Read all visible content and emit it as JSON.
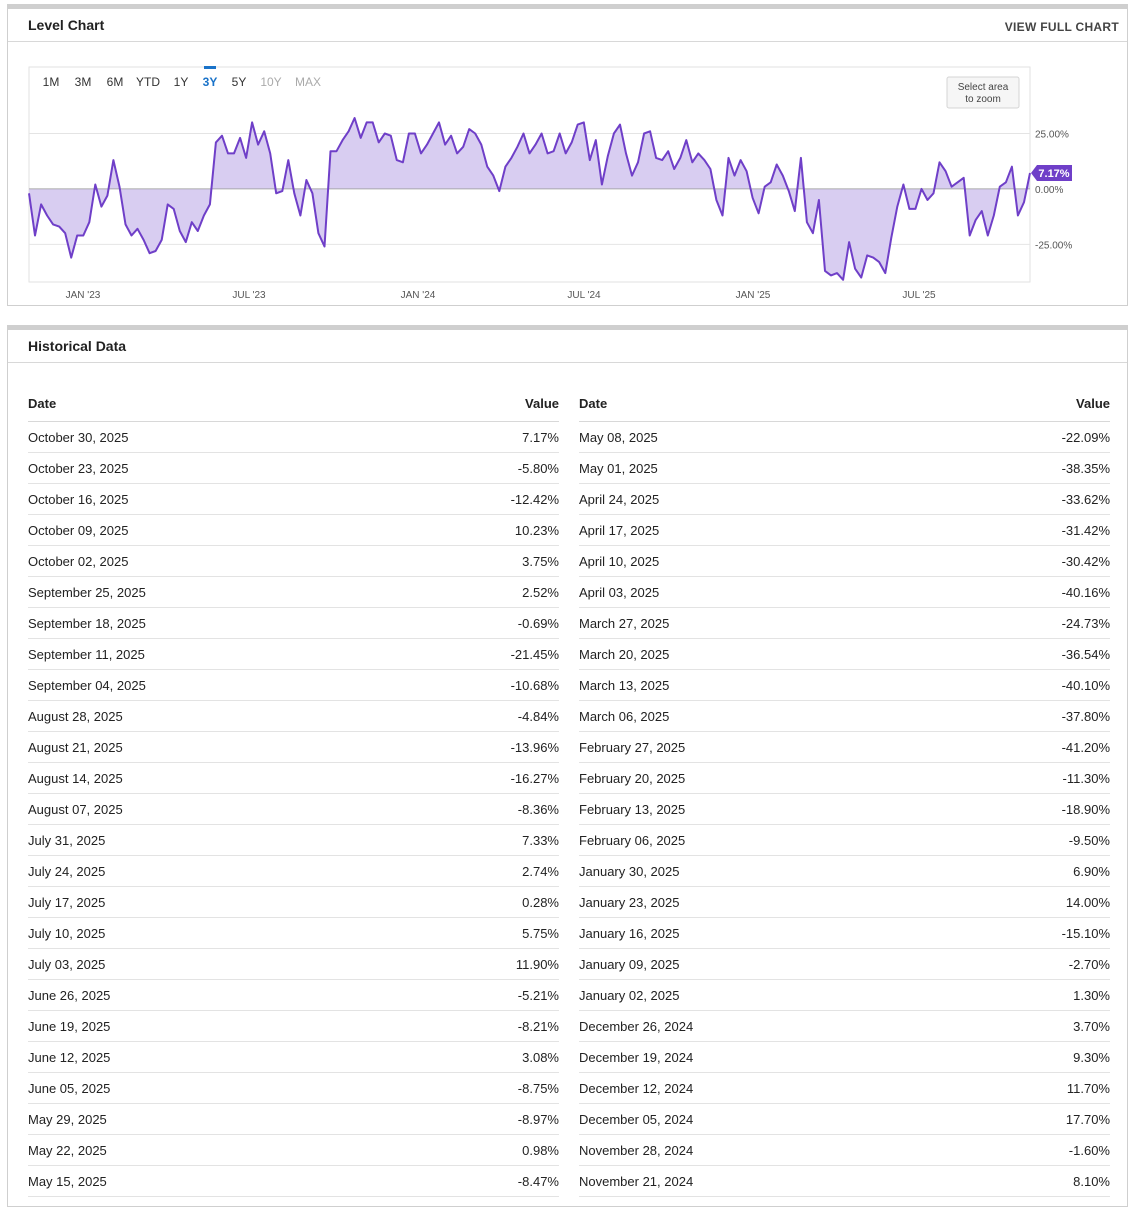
{
  "chart_panel": {
    "title": "Level Chart",
    "view_full_label": "VIEW FULL CHART"
  },
  "range_buttons": [
    "1M",
    "3M",
    "6M",
    "YTD",
    "1Y",
    "3Y",
    "5Y",
    "10Y",
    "MAX"
  ],
  "active_range": "3Y",
  "zoom_hint": [
    "Select area",
    "to zoom"
  ],
  "accent_color": "#6f3fc8",
  "fill_color": "#d8cdf1",
  "chart_data": {
    "type": "area",
    "x_tick_labels": [
      "JAN '23",
      "JUL '23",
      "JAN '24",
      "JUL '24",
      "JAN '25",
      "JUL '25"
    ],
    "y_tick_labels": [
      "25.00%",
      "0.00%",
      "-25.00%"
    ],
    "ylim": [
      -42,
      55
    ],
    "current_value_label": "7.17%",
    "legend": "none",
    "grid": "horizontal",
    "values": [
      -2,
      -21,
      -7,
      -12,
      -16,
      -17,
      -20,
      -31,
      -21,
      -21,
      -15,
      2,
      -8,
      -3,
      13,
      1,
      -16,
      -21,
      -18,
      -23,
      -29,
      -28,
      -23,
      -7,
      -9,
      -19,
      -24,
      -15,
      -19,
      -12,
      -7,
      21,
      24,
      16,
      16,
      23,
      14,
      30,
      20,
      26,
      16,
      -2,
      -1,
      13,
      -2,
      -12,
      4,
      -2,
      -20,
      -26,
      17,
      17,
      22,
      26,
      32,
      23,
      30,
      30,
      21,
      25,
      24,
      13,
      12,
      25,
      25,
      16,
      20,
      25,
      30,
      20,
      24,
      16,
      19,
      27,
      25,
      20,
      10,
      6,
      -1,
      10,
      14,
      19,
      25,
      16,
      20,
      25,
      16,
      17,
      25,
      16,
      21,
      29,
      30,
      13,
      22,
      2,
      15,
      25,
      29,
      16,
      6,
      12,
      25,
      26,
      14,
      13,
      17,
      9,
      14,
      22,
      12,
      16,
      13,
      9,
      -5,
      -12,
      14,
      6,
      13,
      8,
      -4,
      -11,
      1,
      3,
      11,
      6,
      -1,
      -10,
      14,
      -15,
      -20,
      -5,
      -37,
      -39,
      -38,
      -41,
      -24,
      -36,
      -40,
      -30,
      -31,
      -33,
      -38,
      -22,
      -8,
      2,
      -9,
      -9,
      0,
      -5,
      -2,
      12,
      8,
      1,
      3,
      5,
      -21,
      -14,
      -10,
      -21,
      -12,
      1,
      3,
      10,
      -12,
      -6,
      7.17
    ]
  },
  "historical": {
    "title": "Historical Data",
    "headers": {
      "date": "Date",
      "value": "Value"
    },
    "left": [
      {
        "date": "October 30, 2025",
        "value": "7.17%"
      },
      {
        "date": "October 23, 2025",
        "value": "-5.80%"
      },
      {
        "date": "October 16, 2025",
        "value": "-12.42%"
      },
      {
        "date": "October 09, 2025",
        "value": "10.23%"
      },
      {
        "date": "October 02, 2025",
        "value": "3.75%"
      },
      {
        "date": "September 25, 2025",
        "value": "2.52%"
      },
      {
        "date": "September 18, 2025",
        "value": "-0.69%"
      },
      {
        "date": "September 11, 2025",
        "value": "-21.45%"
      },
      {
        "date": "September 04, 2025",
        "value": "-10.68%"
      },
      {
        "date": "August 28, 2025",
        "value": "-4.84%"
      },
      {
        "date": "August 21, 2025",
        "value": "-13.96%"
      },
      {
        "date": "August 14, 2025",
        "value": "-16.27%"
      },
      {
        "date": "August 07, 2025",
        "value": "-8.36%"
      },
      {
        "date": "July 31, 2025",
        "value": "7.33%"
      },
      {
        "date": "July 24, 2025",
        "value": "2.74%"
      },
      {
        "date": "July 17, 2025",
        "value": "0.28%"
      },
      {
        "date": "July 10, 2025",
        "value": "5.75%"
      },
      {
        "date": "July 03, 2025",
        "value": "11.90%"
      },
      {
        "date": "June 26, 2025",
        "value": "-5.21%"
      },
      {
        "date": "June 19, 2025",
        "value": "-8.21%"
      },
      {
        "date": "June 12, 2025",
        "value": "3.08%"
      },
      {
        "date": "June 05, 2025",
        "value": "-8.75%"
      },
      {
        "date": "May 29, 2025",
        "value": "-8.97%"
      },
      {
        "date": "May 22, 2025",
        "value": "0.98%"
      },
      {
        "date": "May 15, 2025",
        "value": "-8.47%"
      }
    ],
    "right": [
      {
        "date": "May 08, 2025",
        "value": "-22.09%"
      },
      {
        "date": "May 01, 2025",
        "value": "-38.35%"
      },
      {
        "date": "April 24, 2025",
        "value": "-33.62%"
      },
      {
        "date": "April 17, 2025",
        "value": "-31.42%"
      },
      {
        "date": "April 10, 2025",
        "value": "-30.42%"
      },
      {
        "date": "April 03, 2025",
        "value": "-40.16%"
      },
      {
        "date": "March 27, 2025",
        "value": "-24.73%"
      },
      {
        "date": "March 20, 2025",
        "value": "-36.54%"
      },
      {
        "date": "March 13, 2025",
        "value": "-40.10%"
      },
      {
        "date": "March 06, 2025",
        "value": "-37.80%"
      },
      {
        "date": "February 27, 2025",
        "value": "-41.20%"
      },
      {
        "date": "February 20, 2025",
        "value": "-11.30%"
      },
      {
        "date": "February 13, 2025",
        "value": "-18.90%"
      },
      {
        "date": "February 06, 2025",
        "value": "-9.50%"
      },
      {
        "date": "January 30, 2025",
        "value": "6.90%"
      },
      {
        "date": "January 23, 2025",
        "value": "14.00%"
      },
      {
        "date": "January 16, 2025",
        "value": "-15.10%"
      },
      {
        "date": "January 09, 2025",
        "value": "-2.70%"
      },
      {
        "date": "January 02, 2025",
        "value": "1.30%"
      },
      {
        "date": "December 26, 2024",
        "value": "3.70%"
      },
      {
        "date": "December 19, 2024",
        "value": "9.30%"
      },
      {
        "date": "December 12, 2024",
        "value": "11.70%"
      },
      {
        "date": "December 05, 2024",
        "value": "17.70%"
      },
      {
        "date": "November 28, 2024",
        "value": "-1.60%"
      },
      {
        "date": "November 21, 2024",
        "value": "8.10%"
      }
    ]
  }
}
